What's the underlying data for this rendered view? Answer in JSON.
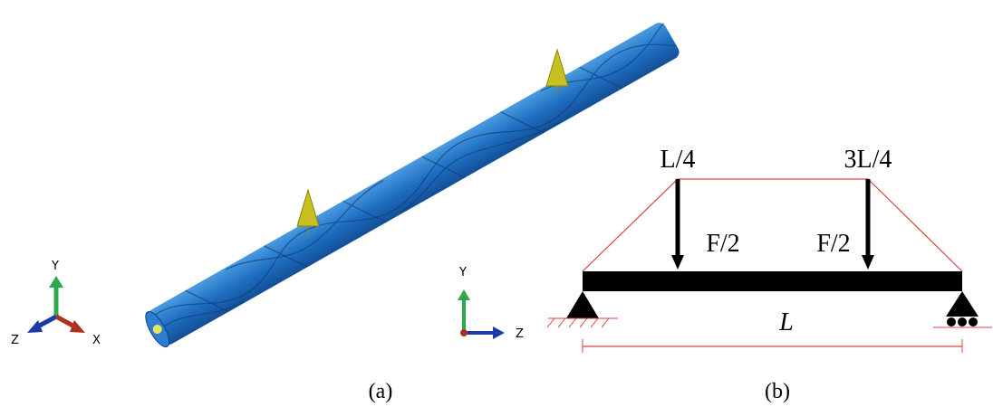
{
  "panel_a": {
    "triad_left": {
      "y": "Y",
      "z": "Z",
      "x": "X"
    },
    "triad_middle": {
      "y": "Y",
      "z": "Z"
    },
    "caption": "(a)"
  },
  "panel_b": {
    "load_position_1": "L/4",
    "load_position_2": "3L/4",
    "load_1": "F/2",
    "load_2": "F/2",
    "span": "L",
    "caption": "(b)"
  }
}
